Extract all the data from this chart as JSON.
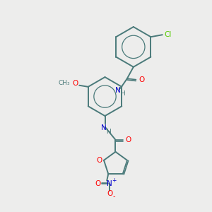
{
  "bg_color": "#ededec",
  "bond_color": "#4a7a7a",
  "atom_colors": {
    "O": "#ff0000",
    "N": "#0000cc",
    "Cl": "#55cc00",
    "C": "#4a7a7a",
    "H": "#4a7a7a"
  },
  "figsize": [
    3.0,
    3.0
  ],
  "dpi": 100
}
